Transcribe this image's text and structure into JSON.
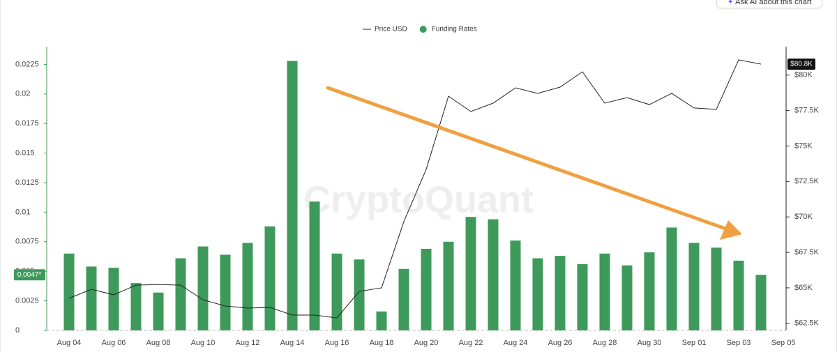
{
  "button": "Ask AI about this chart",
  "chart_data": {
    "type": "bar-line",
    "watermark": "CryptoQuant",
    "categories": [
      "Aug 04",
      null,
      "Aug 06",
      null,
      "Aug 08",
      null,
      "Aug 10",
      null,
      "Aug 12",
      null,
      "Aug 14",
      null,
      "Aug 16",
      null,
      "Aug 18",
      null,
      "Aug 20",
      null,
      "Aug 22",
      null,
      "Aug 24",
      null,
      "Aug 26",
      null,
      "Aug 28",
      null,
      "Aug 30",
      null,
      "Sep 01",
      null,
      "Sep 03",
      null,
      "Sep 05"
    ],
    "series": [
      {
        "name": "Price USD",
        "type": "line",
        "axis": "y2",
        "color": "#222222",
        "values": [
          64260,
          64900,
          64510,
          65190,
          65240,
          65190,
          64160,
          63720,
          63570,
          63620,
          63080,
          63080,
          62880,
          64750,
          65000,
          69670,
          73350,
          78510,
          77430,
          78020,
          79100,
          78710,
          79150,
          80230,
          78020,
          78410,
          77920,
          78710,
          77680,
          77580,
          81070,
          80770,
          null
        ],
        "value_labels": [
          null,
          null,
          null,
          null,
          null,
          null,
          null,
          null,
          null,
          null,
          null,
          null,
          null,
          null,
          null,
          null,
          null,
          null,
          null,
          null,
          null,
          null,
          null,
          null,
          null,
          null,
          null,
          null,
          null,
          null,
          null,
          "$80.8K",
          null
        ]
      },
      {
        "name": "Funding Rates",
        "type": "bar",
        "axis": "y",
        "color": "#3d9a5a",
        "values": [
          0.0065,
          0.0054,
          0.0053,
          0.004,
          0.0032,
          0.0061,
          0.0071,
          0.0064,
          0.0074,
          0.0088,
          0.0228,
          0.0109,
          0.0065,
          0.006,
          0.0016,
          0.0052,
          0.0069,
          0.0075,
          0.0096,
          0.0094,
          0.0076,
          0.0061,
          0.0063,
          0.0056,
          0.0065,
          0.0055,
          0.0066,
          0.0087,
          0.0074,
          0.007,
          0.0059,
          0.0047,
          null
        ],
        "value_labels": [
          null,
          null,
          null,
          null,
          null,
          null,
          null,
          null,
          null,
          null,
          null,
          null,
          null,
          null,
          null,
          null,
          null,
          null,
          null,
          null,
          null,
          null,
          null,
          null,
          null,
          null,
          null,
          null,
          null,
          null,
          null,
          "0.0047*",
          null
        ]
      }
    ],
    "ylim": [
      0,
      0.024
    ],
    "yticks": [
      0,
      0.0025,
      0.005,
      0.0075,
      0.01,
      0.0125,
      0.015,
      0.0175,
      0.02,
      0.0225
    ],
    "y2lim": [
      62000,
      82000
    ],
    "y2ticks": [
      {
        "value": 62500,
        "label": "$62.5K"
      },
      {
        "value": 65000,
        "label": "$65K"
      },
      {
        "value": 67500,
        "label": "$67.5K"
      },
      {
        "value": 70000,
        "label": "$70K"
      },
      {
        "value": 72500,
        "label": "$72.5K"
      },
      {
        "value": 75000,
        "label": "$75K"
      },
      {
        "value": 77500,
        "label": "$77.5K"
      },
      {
        "value": 80000,
        "label": "$80K"
      }
    ],
    "legend": "top"
  }
}
